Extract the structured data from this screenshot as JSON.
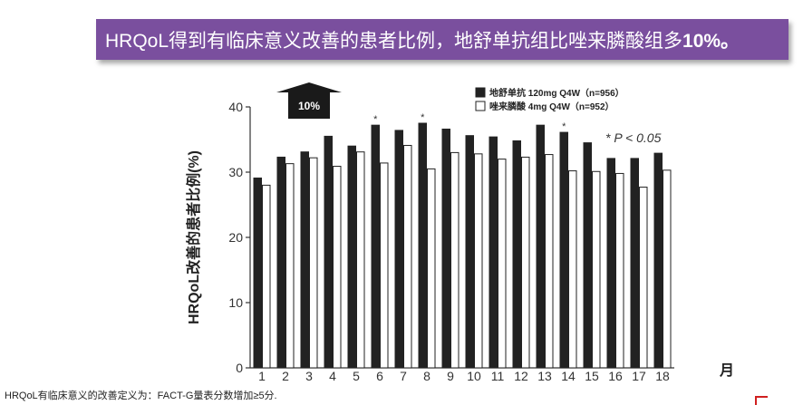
{
  "banner": {
    "title_main": "HRQoL得到有临床意义改善的患者比例，地舒单抗组比唑来膦酸组多",
    "title_bold": "10%。"
  },
  "footnote": "HRQoL有临床意义的改善定义为：FACT-G量表分数增加≥5分.",
  "colors": {
    "banner": "#7a4f9e",
    "series_dark": "#222222",
    "series_light": "#ffffff"
  },
  "chart_data": {
    "type": "bar",
    "title": "",
    "xlabel": "月",
    "ylabel": "HRQoL改善的患者比例(%)",
    "ylim": [
      0,
      40
    ],
    "yticks": [
      0,
      10,
      20,
      30,
      40
    ],
    "categories": [
      "1",
      "2",
      "3",
      "4",
      "5",
      "6",
      "7",
      "8",
      "9",
      "10",
      "11",
      "12",
      "13",
      "14",
      "15",
      "16",
      "17",
      "18"
    ],
    "series": [
      {
        "name": "地舒单抗 120mg Q4W（n=956）",
        "color": "#222222",
        "values": [
          29.1,
          32.3,
          33.1,
          35.5,
          34.0,
          37.2,
          36.4,
          37.5,
          36.6,
          35.6,
          35.4,
          34.8,
          37.2,
          36.1,
          34.5,
          32.1,
          32.1,
          32.9
        ]
      },
      {
        "name": "唑来膦酸 4mg Q4W（n=952）",
        "color": "#ffffff",
        "values": [
          28.0,
          31.3,
          32.2,
          30.9,
          33.1,
          31.4,
          34.1,
          30.5,
          33.0,
          32.8,
          32.0,
          32.3,
          32.7,
          30.2,
          30.1,
          29.8,
          27.7,
          30.3
        ]
      }
    ],
    "significant_months": [
      "6",
      "8",
      "14"
    ],
    "significance_marker": "*",
    "annotations": {
      "p_value": "* P < 0.05",
      "arrow_label": "10%"
    },
    "legend_position": "top-right",
    "grid": false
  }
}
